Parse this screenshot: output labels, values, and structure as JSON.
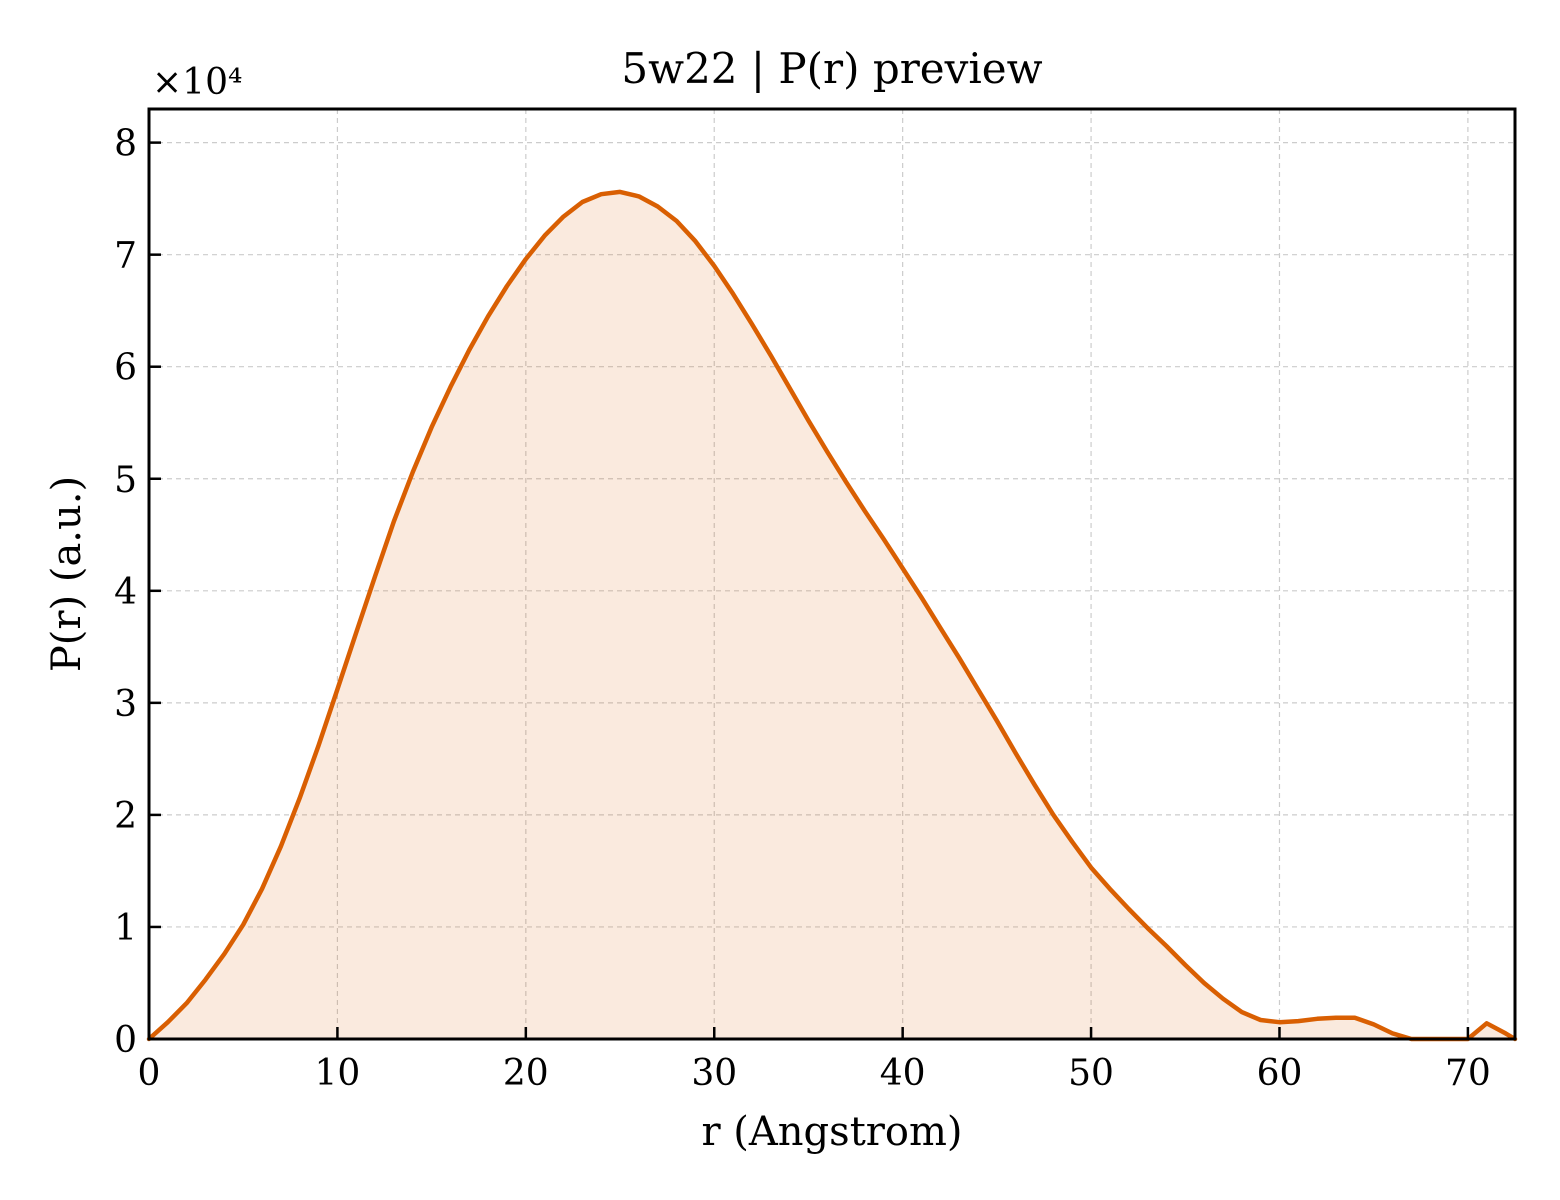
{
  "chart_data": {
    "type": "area",
    "title": "5w22 | P(r) preview",
    "xlabel": "r (Angstrom)",
    "ylabel": "P(r) (a.u.)",
    "y_multiplier_label": "×10⁴",
    "y_multiplier": 10000,
    "xlim": [
      0,
      72.5
    ],
    "ylim": [
      0,
      83000
    ],
    "grid": true,
    "legend": "none",
    "x_ticks": [
      0,
      10,
      20,
      30,
      40,
      50,
      60,
      70
    ],
    "x_tick_labels": [
      "0",
      "10",
      "20",
      "30",
      "40",
      "50",
      "60",
      "70"
    ],
    "y_ticks": [
      0,
      10000,
      20000,
      30000,
      40000,
      50000,
      60000,
      70000,
      80000
    ],
    "y_tick_labels": [
      "0",
      "1",
      "2",
      "3",
      "4",
      "5",
      "6",
      "7",
      "8"
    ],
    "colors": {
      "line": "#d95f02",
      "fill": "#d95f02",
      "fill_opacity": 0.13,
      "grid": "#cccccc"
    },
    "series": [
      {
        "x": [
          0,
          1,
          2,
          3,
          4,
          5,
          6,
          7,
          8,
          9,
          10,
          11,
          12,
          13,
          14,
          15,
          16,
          17,
          18,
          19,
          20,
          21,
          22,
          23,
          24,
          25,
          26,
          27,
          28,
          29,
          30,
          31,
          32,
          33,
          34,
          35,
          36,
          37,
          38,
          39,
          40,
          41,
          42,
          43,
          44,
          45,
          46,
          47,
          48,
          49,
          50,
          51,
          52,
          53,
          54,
          55,
          56,
          57,
          58,
          59,
          60,
          61,
          62,
          63,
          64,
          65,
          66,
          67,
          68,
          69,
          70,
          71,
          72,
          72.5
        ],
        "values": [
          0,
          1500,
          3200,
          5300,
          7600,
          10200,
          13400,
          17200,
          21500,
          26200,
          31200,
          36300,
          41300,
          46200,
          50600,
          54600,
          58200,
          61500,
          64500,
          67200,
          69600,
          71700,
          73400,
          74700,
          75400,
          75600,
          75200,
          74300,
          73000,
          71200,
          69000,
          66500,
          63800,
          61000,
          58100,
          55200,
          52400,
          49700,
          47100,
          44600,
          42000,
          39400,
          36700,
          34000,
          31200,
          28400,
          25500,
          22700,
          20000,
          17600,
          15300,
          13400,
          11600,
          9900,
          8300,
          6600,
          5000,
          3600,
          2400,
          1700,
          1500,
          1600,
          1800,
          1900,
          1900,
          1300,
          500,
          0,
          0,
          0,
          0,
          1400,
          500,
          0
        ]
      }
    ]
  }
}
